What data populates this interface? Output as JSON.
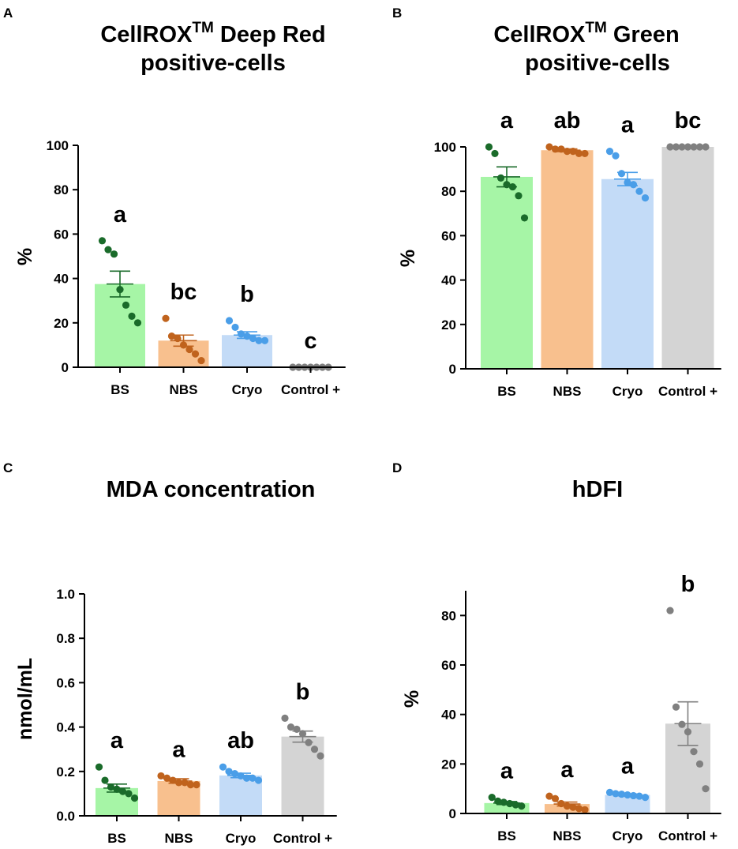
{
  "figure": {
    "panels": [
      {
        "letter": "A",
        "title_main": "CellROX",
        "title_sup": "TM",
        "title_rest": " Deep Red",
        "title_line2": "positive-cells"
      },
      {
        "letter": "B",
        "title_main": "CellROX",
        "title_sup": "TM",
        "title_rest": " Green",
        "title_line2": "positive-cells"
      },
      {
        "letter": "C",
        "title_main": "MDA concentration",
        "title_sup": "",
        "title_rest": "",
        "title_line2": ""
      },
      {
        "letter": "D",
        "title_main": "hDFI",
        "title_sup": "",
        "title_rest": "",
        "title_line2": ""
      }
    ]
  },
  "chart_data": [
    {
      "type": "bar",
      "panel": "A",
      "title": "CellROXTM Deep Red positive-cells",
      "categories": [
        "BS",
        "NBS",
        "Cryo",
        "Control +"
      ],
      "ylabel": "%",
      "ylim": [
        0,
        100
      ],
      "yticks": [
        "0",
        "20",
        "40",
        "60",
        "80",
        "100"
      ],
      "values": [
        37.5,
        12,
        14.5,
        0
      ],
      "sem": [
        5.8,
        2.5,
        1.5,
        0
      ],
      "significance": [
        "a",
        "bc",
        "b",
        "c"
      ],
      "points": [
        [
          57,
          53,
          51,
          35,
          28,
          23,
          20
        ],
        [
          22,
          14,
          13,
          10,
          8,
          6,
          3
        ],
        [
          21,
          18,
          15,
          14,
          13,
          12,
          12
        ],
        [
          0,
          0,
          0,
          0,
          0,
          0,
          0
        ]
      ],
      "colors": {
        "bars": [
          "#a6f5a6",
          "#f8c08e",
          "#c3dbf7",
          "#d4d4d4"
        ],
        "points": [
          "#1a6b2a",
          "#c0631d",
          "#4a9ee8",
          "#808080"
        ]
      }
    },
    {
      "type": "bar",
      "panel": "B",
      "title": "CellROXTM Green positive-cells",
      "categories": [
        "BS",
        "NBS",
        "Cryo",
        "Control +"
      ],
      "ylabel": "%",
      "ylim": [
        0,
        100
      ],
      "yticks": [
        "0",
        "20",
        "40",
        "60",
        "80",
        "100"
      ],
      "values": [
        86.5,
        98.5,
        85.5,
        100
      ],
      "sem": [
        4.5,
        0.6,
        3,
        0
      ],
      "significance": [
        "a",
        "ab",
        "a",
        "bc"
      ],
      "points": [
        [
          100,
          97,
          86,
          83,
          82,
          78,
          68
        ],
        [
          100,
          99,
          99,
          98,
          98,
          97,
          97
        ],
        [
          98,
          96,
          88,
          84,
          83,
          80,
          77
        ],
        [
          100,
          100,
          100,
          100,
          100,
          100,
          100
        ]
      ],
      "colors": {
        "bars": [
          "#a6f5a6",
          "#f8c08e",
          "#c3dbf7",
          "#d4d4d4"
        ],
        "points": [
          "#1a6b2a",
          "#c0631d",
          "#4a9ee8",
          "#808080"
        ]
      }
    },
    {
      "type": "bar",
      "panel": "C",
      "title": "MDA concentration",
      "categories": [
        "BS",
        "NBS",
        "Cryo",
        "Control +"
      ],
      "ylabel": "nmol/mL",
      "ylim": [
        0,
        1.0
      ],
      "yticks": [
        "0.0",
        "0.2",
        "0.4",
        "0.6",
        "0.8",
        "1.0"
      ],
      "values": [
        0.125,
        0.157,
        0.182,
        0.357
      ],
      "sem": [
        0.018,
        0.01,
        0.01,
        0.025
      ],
      "significance": [
        "a",
        "a",
        "ab",
        "b"
      ],
      "points": [
        [
          0.22,
          0.16,
          0.13,
          0.12,
          0.11,
          0.1,
          0.08
        ],
        [
          0.18,
          0.17,
          0.16,
          0.15,
          0.15,
          0.14,
          0.14
        ],
        [
          0.22,
          0.2,
          0.19,
          0.18,
          0.17,
          0.17,
          0.16
        ],
        [
          0.44,
          0.4,
          0.39,
          0.37,
          0.33,
          0.3,
          0.27
        ]
      ],
      "colors": {
        "bars": [
          "#a6f5a6",
          "#f8c08e",
          "#c3dbf7",
          "#d4d4d4"
        ],
        "points": [
          "#1a6b2a",
          "#c0631d",
          "#4a9ee8",
          "#808080"
        ]
      }
    },
    {
      "type": "bar",
      "panel": "D",
      "title": "hDFI",
      "categories": [
        "BS",
        "NBS",
        "Cryo",
        "Control +"
      ],
      "ylabel": "%",
      "ylim": [
        0,
        90
      ],
      "yticks": [
        "0",
        "20",
        "40",
        "60",
        "80"
      ],
      "values": [
        4.2,
        3.8,
        7.5,
        36.3
      ],
      "sem": [
        0.6,
        0.8,
        0.4,
        8.8
      ],
      "significance": [
        "a",
        "a",
        "a",
        "b"
      ],
      "points": [
        [
          6.5,
          5,
          4.5,
          4,
          3.5,
          3
        ],
        [
          7,
          6,
          4,
          3,
          2.5,
          2,
          1.5
        ],
        [
          8.5,
          8,
          7.8,
          7.5,
          7.2,
          7,
          6.5
        ],
        [
          82,
          43,
          36,
          33,
          25,
          20,
          10
        ]
      ],
      "colors": {
        "bars": [
          "#a6f5a6",
          "#f8c08e",
          "#c3dbf7",
          "#d4d4d4"
        ],
        "points": [
          "#1a6b2a",
          "#c0631d",
          "#4a9ee8",
          "#808080"
        ]
      }
    }
  ]
}
